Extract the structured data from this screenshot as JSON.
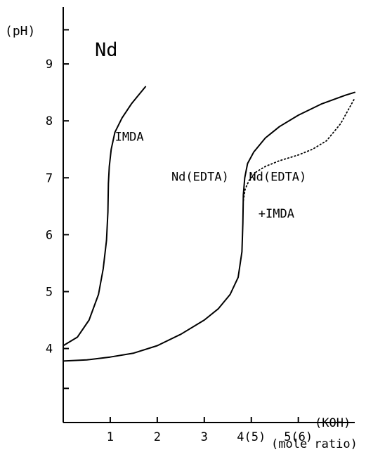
{
  "chart_data": {
    "type": "line",
    "title": "Nd",
    "ylabel": "(pH)",
    "xlabel": "(mole ratio)",
    "x_unit": "(KOH)",
    "xlim": [
      0,
      6.2
    ],
    "ylim": [
      2.7,
      10.0
    ],
    "x_ticks": [
      1,
      2,
      3,
      4,
      5
    ],
    "x_tick_labels": [
      "1",
      "2",
      "3",
      "4(5)",
      "5(6)"
    ],
    "y_ticks": [
      4,
      5,
      6,
      7,
      8,
      9
    ],
    "y_tick_labels": [
      "4",
      "5",
      "6",
      "7",
      "8",
      "9"
    ],
    "grid": false,
    "series": [
      {
        "name": "IMDA",
        "style": "solid",
        "x": [
          0.0,
          0.3,
          0.55,
          0.75,
          0.85,
          0.92,
          0.95,
          0.96,
          0.98,
          1.02,
          1.1,
          1.25,
          1.45,
          1.65,
          1.75
        ],
        "y": [
          4.05,
          4.2,
          4.5,
          4.95,
          5.4,
          5.9,
          6.4,
          6.9,
          7.2,
          7.5,
          7.8,
          8.05,
          8.3,
          8.5,
          8.6
        ]
      },
      {
        "name": "Nd(EDTA)",
        "style": "solid",
        "x": [
          0.0,
          0.5,
          1.0,
          1.5,
          2.0,
          2.5,
          3.0,
          3.3,
          3.55,
          3.72,
          3.8,
          3.82,
          3.83,
          3.86,
          3.92,
          4.05,
          4.3,
          4.6,
          5.0,
          5.5,
          6.0,
          6.2
        ],
        "y": [
          3.78,
          3.8,
          3.85,
          3.92,
          4.05,
          4.25,
          4.5,
          4.7,
          4.95,
          5.25,
          5.7,
          6.2,
          6.7,
          7.0,
          7.25,
          7.45,
          7.7,
          7.9,
          8.1,
          8.3,
          8.45,
          8.5
        ]
      },
      {
        "name": "Nd(EDTA) +IMDA",
        "style": "dotted",
        "x": [
          3.83,
          3.87,
          3.95,
          4.1,
          4.3,
          4.6,
          5.0,
          5.3,
          5.6,
          5.9,
          6.1,
          6.2
        ],
        "y": [
          6.6,
          6.8,
          6.95,
          7.1,
          7.2,
          7.3,
          7.4,
          7.5,
          7.65,
          7.95,
          8.25,
          8.4
        ]
      }
    ],
    "annotations": [
      {
        "text": "IMDA",
        "x": 1.1,
        "y": 7.65
      },
      {
        "text": "Nd(EDTA)",
        "x": 2.3,
        "y": 6.95
      },
      {
        "text": "Nd(EDTA)",
        "x": 3.95,
        "y": 6.95
      },
      {
        "text": "+IMDA",
        "x": 4.15,
        "y": 6.3
      }
    ]
  }
}
